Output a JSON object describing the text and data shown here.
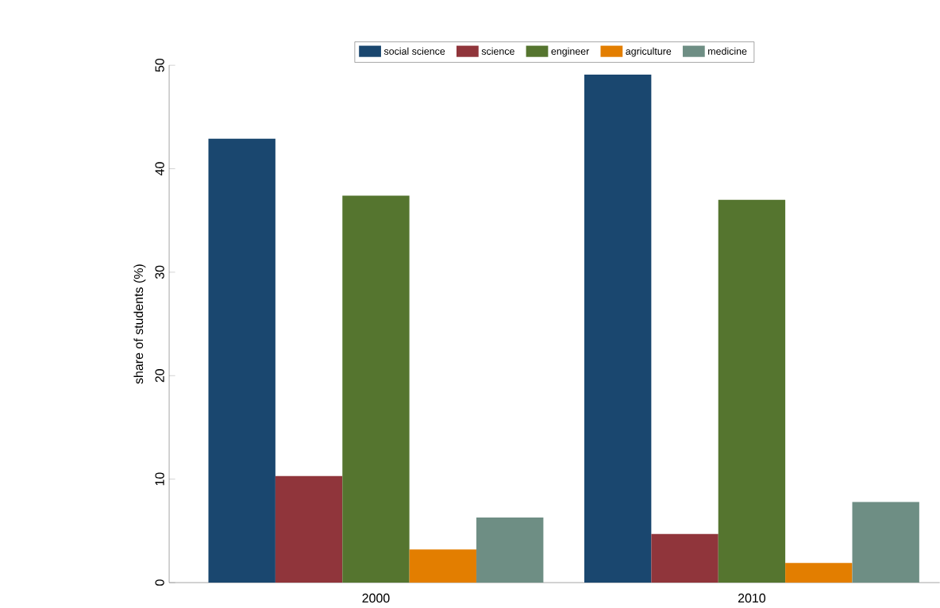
{
  "chart_data": {
    "type": "bar",
    "ylabel": "share of students (%)",
    "categories": [
      "2000",
      "2010"
    ],
    "series": [
      {
        "name": "social science",
        "color": "#1a476f",
        "values": [
          42.9,
          49.1
        ]
      },
      {
        "name": "science",
        "color": "#90353b",
        "values": [
          10.3,
          4.7
        ]
      },
      {
        "name": "engineer",
        "color": "#55752f",
        "values": [
          37.4,
          37.0
        ]
      },
      {
        "name": "agriculture",
        "color": "#e37e00",
        "values": [
          3.2,
          1.9
        ]
      },
      {
        "name": "medicine",
        "color": "#6e8e84",
        "values": [
          6.3,
          7.8
        ]
      }
    ],
    "ylim": [
      0,
      50
    ],
    "yticks": [
      0,
      10,
      20,
      30,
      40,
      50
    ],
    "legend": "top"
  }
}
